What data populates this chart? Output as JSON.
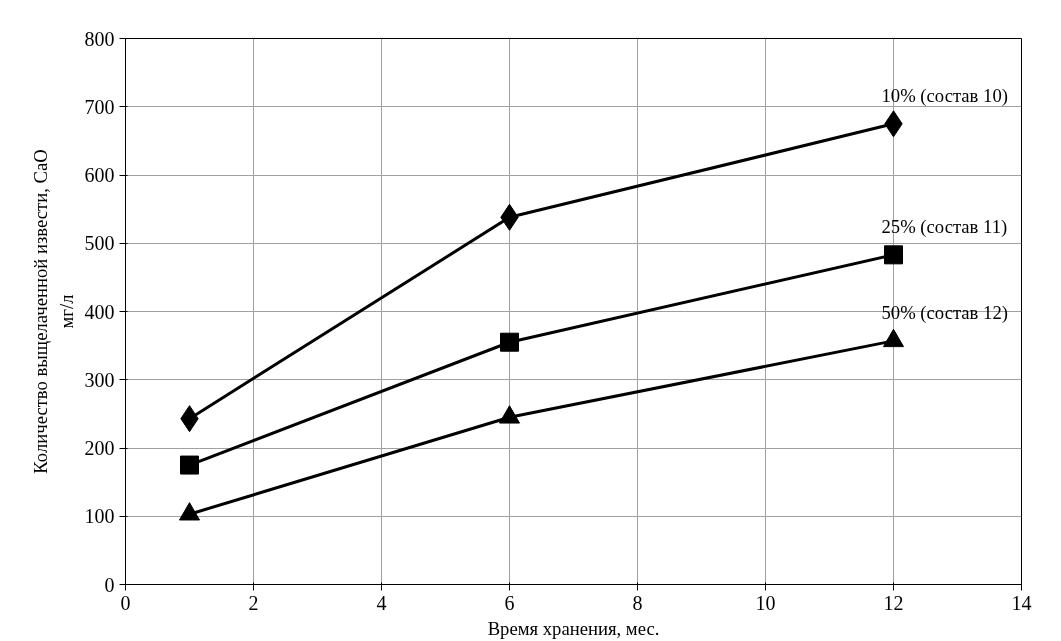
{
  "chart_data": {
    "type": "line",
    "xlabel": "Время хранения, мес.",
    "ylabel": "Количество выщелаченной извести, CaO\nмг/л",
    "x": [
      1,
      6,
      12
    ],
    "series": [
      {
        "name": "10% (состав 10)",
        "color": "#000000",
        "marker": "diamond",
        "values": [
          243,
          538,
          675
        ]
      },
      {
        "name": "25% (состав 11)",
        "color": "#000000",
        "marker": "square",
        "values": [
          175,
          355,
          483
        ]
      },
      {
        "name": "50% (состав 12)",
        "color": "#000000",
        "marker": "triangle",
        "values": [
          103,
          245,
          357
        ]
      }
    ],
    "xlim": [
      0,
      14
    ],
    "xticks": [
      0,
      2,
      4,
      6,
      8,
      10,
      12,
      14
    ],
    "ylim": [
      0,
      800
    ],
    "yticks": [
      0,
      100,
      200,
      300,
      400,
      500,
      600,
      700,
      800
    ],
    "grid": true,
    "line_style": "solid"
  }
}
